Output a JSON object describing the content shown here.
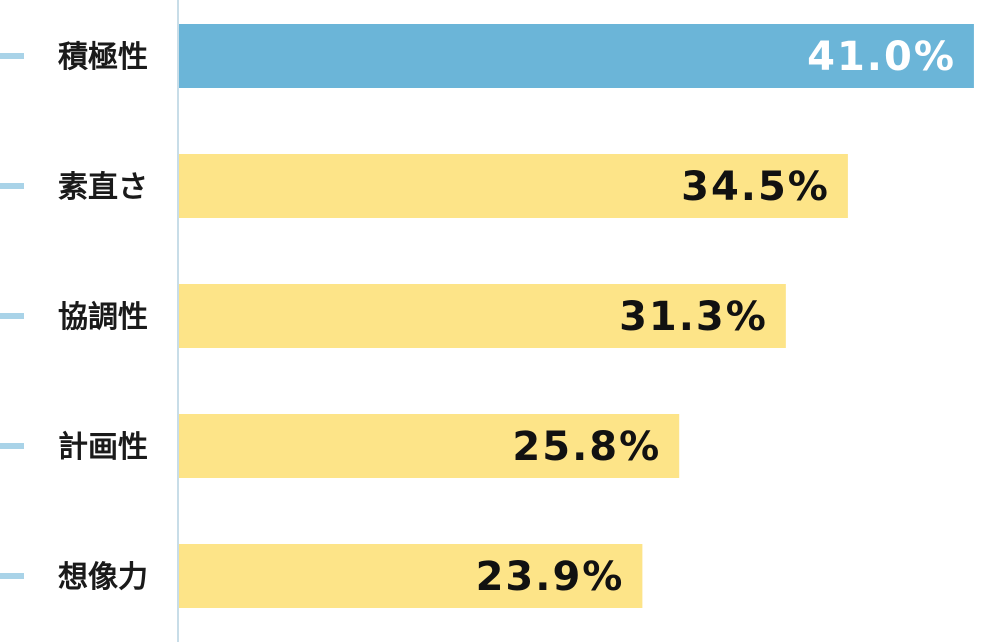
{
  "chart_data": {
    "type": "bar",
    "orientation": "horizontal",
    "categories": [
      "積極性",
      "素直さ",
      "協調性",
      "計画性",
      "想像力"
    ],
    "values": [
      41.0,
      34.5,
      31.3,
      25.8,
      23.9
    ],
    "value_labels": [
      "41.0%",
      "34.5%",
      "31.3%",
      "25.8%",
      "23.9%"
    ],
    "unit": "%",
    "xlim": [
      0,
      42.5
    ],
    "grid": false,
    "legend": "none",
    "highlight_index": 0,
    "colors": {
      "highlight_bar": "#6bb5d8",
      "bar": "#fde488",
      "highlight_label": "#ffffff",
      "label": "#111111",
      "axis": "#c8dde8",
      "tick": "#a9d3e8"
    }
  }
}
